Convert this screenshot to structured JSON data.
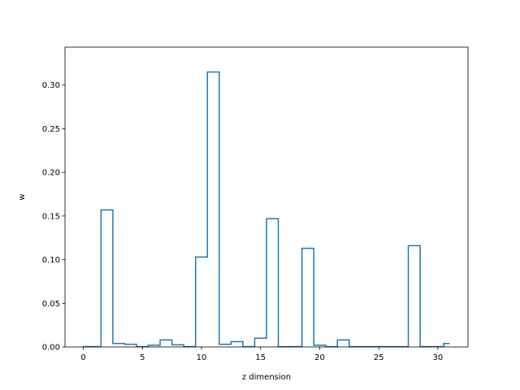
{
  "chart_data": {
    "type": "step",
    "title": "",
    "xlabel": "z dimension",
    "ylabel": "w",
    "xlim": [
      -1.55,
      32.55
    ],
    "ylim": [
      0,
      0.3435
    ],
    "xticks": [
      0,
      5,
      10,
      15,
      20,
      25,
      30
    ],
    "xtick_labels": [
      "0",
      "5",
      "10",
      "15",
      "20",
      "25",
      "30"
    ],
    "yticks": [
      0.0,
      0.05,
      0.1,
      0.15,
      0.2,
      0.25,
      0.3
    ],
    "ytick_labels": [
      "0.00",
      "0.05",
      "0.10",
      "0.15",
      "0.20",
      "0.25",
      "0.30"
    ],
    "grid": false,
    "step_where": "mid",
    "line_color": "#1f77b4",
    "x": [
      0,
      1,
      2,
      3,
      4,
      5,
      6,
      7,
      8,
      9,
      10,
      11,
      12,
      13,
      14,
      15,
      16,
      17,
      18,
      19,
      20,
      21,
      22,
      23,
      24,
      25,
      26,
      27,
      28,
      29,
      30,
      31
    ],
    "values": [
      0.0003,
      0.0003,
      0.157,
      0.004,
      0.003,
      0.0003,
      0.002,
      0.008,
      0.0025,
      0.0003,
      0.103,
      0.315,
      0.003,
      0.006,
      0.0003,
      0.01,
      0.147,
      0.0003,
      0.0003,
      0.113,
      0.002,
      0.0003,
      0.008,
      0.0003,
      0.0003,
      0.0003,
      0.0003,
      0.0003,
      0.116,
      0.0003,
      0.0003,
      0.004
    ]
  }
}
